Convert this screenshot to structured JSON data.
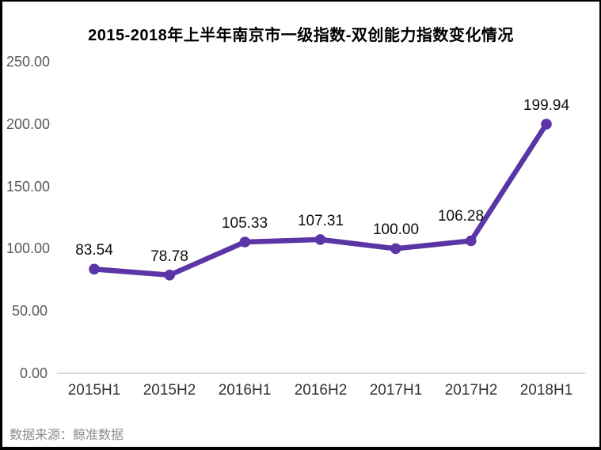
{
  "title": "2015-2018年上半年南京市一级指数-双创能力指数变化情况",
  "chart_data": {
    "type": "line",
    "title": "2015-2018年上半年南京市一级指数-双创能力指数变化情况",
    "categories": [
      "2015H1",
      "2015H2",
      "2016H1",
      "2016H2",
      "2017H1",
      "2017H2",
      "2018H1"
    ],
    "series": [
      {
        "name": "双创能力指数",
        "values": [
          83.54,
          78.78,
          105.33,
          107.31,
          100.0,
          106.28,
          199.94
        ]
      }
    ],
    "data_label_decimals": 2,
    "ylim": [
      0,
      250
    ],
    "y_tick_values": [
      0,
      50,
      100,
      150,
      200,
      250
    ],
    "y_tick_labels": [
      "0.00",
      "50.00",
      "100.00",
      "150.00",
      "200.00",
      "250.00"
    ],
    "xlabel": "",
    "ylabel": "",
    "grid": "baseline-only",
    "legend": "none",
    "colors": {
      "line": "#5B35A5",
      "marker": "#5B35A5",
      "axis_line": "#D9D9D9",
      "y_tick_text": "#595959",
      "x_tick_text": "#333333",
      "data_label_text": "#0D0D0D",
      "title_text": "#000000",
      "frame_border": "#000000",
      "background": "#FFFFFF"
    }
  },
  "footer": {
    "source": "数据来源：鲸准数据"
  }
}
